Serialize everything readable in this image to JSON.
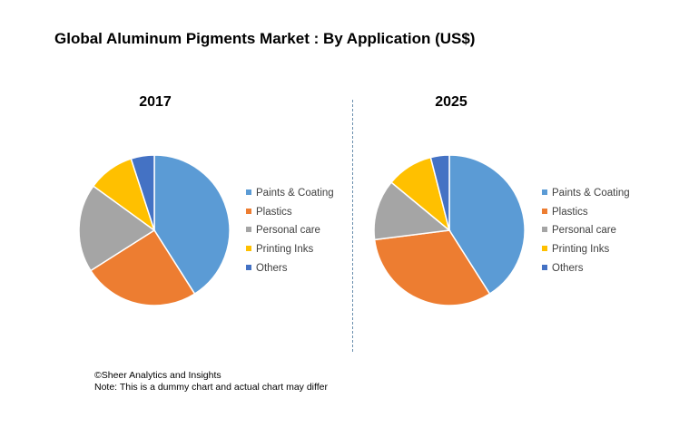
{
  "title": "Global Aluminum Pigments Market : By Application (US$)",
  "chart_data": [
    {
      "type": "pie",
      "title": "2017",
      "categories": [
        "Paints & Coating",
        "Plastics",
        "Personal care",
        "Printing Inks",
        "Others"
      ],
      "values": [
        41,
        25,
        19,
        10,
        5
      ],
      "colors": [
        "#5B9BD5",
        "#ED7D31",
        "#A5A5A5",
        "#FFC000",
        "#4472C4"
      ],
      "legend": "right"
    },
    {
      "type": "pie",
      "title": "2025",
      "categories": [
        "Paints & Coating",
        "Plastics",
        "Personal care",
        "Printing Inks",
        "Others"
      ],
      "values": [
        41,
        32,
        13,
        10,
        4
      ],
      "colors": [
        "#5B9BD5",
        "#ED7D31",
        "#A5A5A5",
        "#FFC000",
        "#4472C4"
      ],
      "legend": "right"
    }
  ],
  "footer": {
    "line1": "©Sheer Analytics and Insights",
    "line2": "Note: This is a dummy chart and actual chart may differ"
  }
}
